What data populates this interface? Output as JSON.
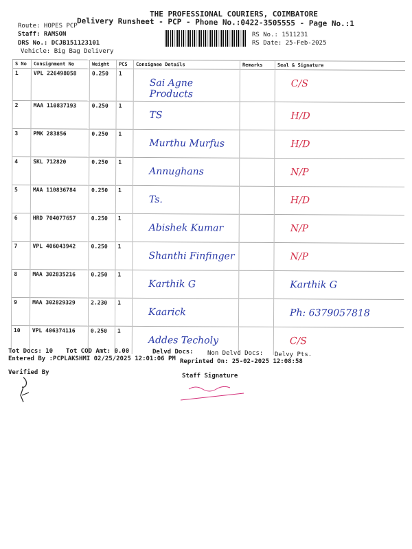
{
  "header": {
    "company": "THE PROFESSIONAL COURIERS, COIMBATORE",
    "title": "Delivery Runsheet - PCP - Phone No.:0422-3505555 - Page No.:1",
    "route": "Route: HOPES PCP",
    "staff": "Staff: RAMSON",
    "drs": "DRS No.: DCJB151123101",
    "vehicle": "Vehicle: Big Bag Delivery",
    "rs_no": "RS No.: 1511231",
    "rs_date": "RS Date: 25-Feb-2025"
  },
  "columns": [
    "S No",
    "Consignment No",
    "Weight",
    "PCS",
    "Consignee Details",
    "Remarks",
    "Seal & Signature"
  ],
  "rows": [
    {
      "sno": "1",
      "cno": "VPL 226498058",
      "weight": "0.250",
      "pcs": "1",
      "consignee": "Sai Agne Products",
      "seal": "C/S"
    },
    {
      "sno": "2",
      "cno": "MAA 110837193",
      "weight": "0.250",
      "pcs": "1",
      "consignee": "TS",
      "seal": "H/D"
    },
    {
      "sno": "3",
      "cno": "PMK 283856",
      "weight": "0.250",
      "pcs": "1",
      "consignee": "Murthu Murfus",
      "seal": "H/D"
    },
    {
      "sno": "4",
      "cno": "SKL 712820",
      "weight": "0.250",
      "pcs": "1",
      "consignee": "Annughans",
      "seal": "N/P"
    },
    {
      "sno": "5",
      "cno": "MAA 110836784",
      "weight": "0.250",
      "pcs": "1",
      "consignee": "Ts.",
      "seal": "H/D"
    },
    {
      "sno": "6",
      "cno": "HRD 704077657",
      "weight": "0.250",
      "pcs": "1",
      "consignee": "Abishek Kumar",
      "seal": "N/P"
    },
    {
      "sno": "7",
      "cno": "VPL 406043942",
      "weight": "0.250",
      "pcs": "1",
      "consignee": "Shanthi Finfinger",
      "seal": "N/P"
    },
    {
      "sno": "8",
      "cno": "MAA 302835216",
      "weight": "0.250",
      "pcs": "1",
      "consignee": "Karthik G",
      "seal": "Karthik G"
    },
    {
      "sno": "9",
      "cno": "MAA 302829329",
      "weight": "2.230",
      "pcs": "1",
      "consignee": "Kaarick",
      "seal": "Ph: 6379057818"
    },
    {
      "sno": "10",
      "cno": "VPL 406374116",
      "weight": "0.250",
      "pcs": "1",
      "consignee": "Addes Techoly",
      "seal": "C/S"
    }
  ],
  "footer": {
    "tot_docs": "Tot Docs:  10",
    "tot_cod": "Tot COD Amt:    0.00",
    "delvd": "Delvd Docs:",
    "non_delvd": "Non Delvd Docs:",
    "delvy_pts": "Delvy Pts.",
    "entered": "Entered By :PCPLAKSHMI 02/25/2025 12:01:06 PM",
    "reprinted": "Reprinted On: 25-02-2025 12:08:58",
    "verified": "Verified By",
    "staff_sig": "Staff Signature"
  }
}
